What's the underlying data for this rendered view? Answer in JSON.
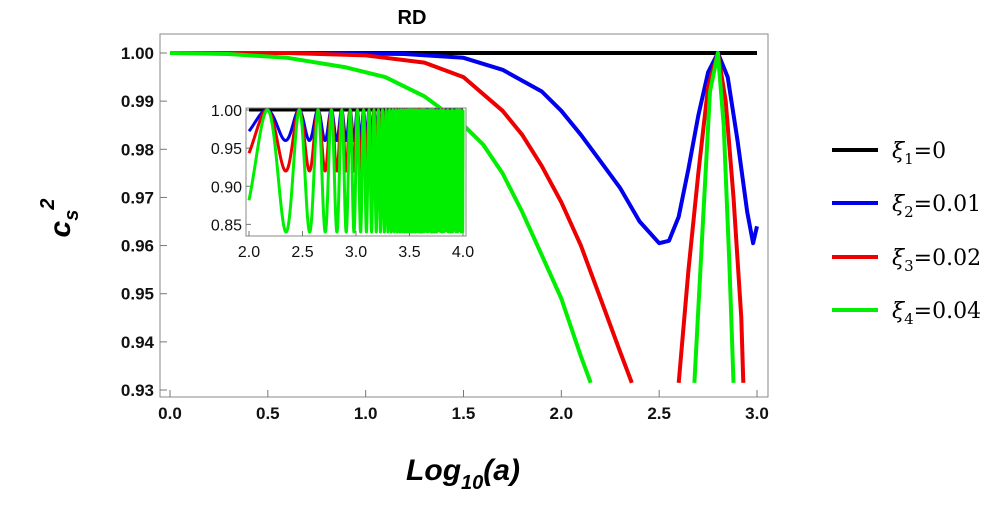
{
  "chart_data": [
    {
      "type": "line",
      "title": "RD",
      "xlabel": "Log10(a)",
      "xlabel_base": "Log",
      "xlabel_sub": "10",
      "xlabel_arg": "(a)",
      "ylabel": "cs^2",
      "ylabel_base": "c",
      "ylabel_sub": "s",
      "ylabel_sup": "2",
      "xlim": [
        0,
        3
      ],
      "ylim": [
        0.93,
        1.0
      ],
      "xticks": [
        0.0,
        0.5,
        1.0,
        1.5,
        2.0,
        2.5,
        3.0
      ],
      "xtick_labels": [
        "0.0",
        "0.5",
        "1.0",
        "1.5",
        "2.0",
        "2.5",
        "3.0"
      ],
      "yticks": [
        0.93,
        0.94,
        0.95,
        0.96,
        0.97,
        0.98,
        0.99,
        1.0
      ],
      "ytick_labels": [
        "0.93",
        "0.94",
        "0.95",
        "0.96",
        "0.97",
        "0.98",
        "0.99",
        "1.00"
      ],
      "legend_position": "right",
      "series": [
        {
          "name": "ξ1=0",
          "legend_sym": "ξ",
          "legend_sub": "1",
          "legend_val": "=0",
          "color": "#000000",
          "x": [
            0,
            3.0
          ],
          "y": [
            1.0,
            1.0
          ]
        },
        {
          "name": "ξ2=0.01",
          "legend_sym": "ξ",
          "legend_sub": "2",
          "legend_val": "=0.01",
          "color": "#0000ee",
          "x": [
            0,
            0.8,
            1.2,
            1.5,
            1.7,
            1.9,
            2.0,
            2.1,
            2.2,
            2.3,
            2.4,
            2.5,
            2.55,
            2.6,
            2.65,
            2.7,
            2.75,
            2.8,
            2.85,
            2.9,
            2.95,
            2.98,
            3.0
          ],
          "y": [
            1.0,
            1.0,
            0.9998,
            0.999,
            0.9965,
            0.992,
            0.988,
            0.983,
            0.9775,
            0.972,
            0.965,
            0.9605,
            0.961,
            0.966,
            0.976,
            0.987,
            0.996,
            1.0,
            0.995,
            0.982,
            0.967,
            0.9605,
            0.964
          ]
        },
        {
          "name": "ξ3=0.02",
          "legend_sym": "ξ",
          "legend_sub": "3",
          "legend_val": "=0.02",
          "color": "#ee0000",
          "x": [
            0,
            0.6,
            1.0,
            1.3,
            1.5,
            1.7,
            1.8,
            1.9,
            2.0,
            2.1,
            2.2,
            2.3,
            2.36,
            null,
            2.6,
            2.65,
            2.7,
            2.75,
            2.8,
            2.84,
            2.88,
            2.92,
            2.93
          ],
          "y": [
            1.0,
            1.0,
            0.9995,
            0.998,
            0.995,
            0.988,
            0.983,
            0.9765,
            0.969,
            0.96,
            0.949,
            0.938,
            0.9315,
            null,
            0.9315,
            0.955,
            0.975,
            0.993,
            1.0,
            0.99,
            0.97,
            0.945,
            0.9315
          ]
        },
        {
          "name": "ξ4=0.04",
          "legend_sym": "ξ",
          "legend_sub": "4",
          "legend_val": "=0.04",
          "color": "#00ee00",
          "x": [
            0,
            0.3,
            0.6,
            0.9,
            1.1,
            1.3,
            1.5,
            1.6,
            1.7,
            1.8,
            1.9,
            2.0,
            2.1,
            2.15,
            null,
            2.68,
            2.72,
            2.76,
            2.8,
            2.83,
            2.86,
            2.88
          ],
          "y": [
            1.0,
            0.9998,
            0.999,
            0.997,
            0.995,
            0.991,
            0.985,
            0.981,
            0.975,
            0.967,
            0.958,
            0.949,
            0.937,
            0.9315,
            null,
            0.9315,
            0.962,
            0.992,
            1.0,
            0.985,
            0.955,
            0.9315
          ]
        }
      ]
    },
    {
      "type": "line",
      "title": "inset",
      "xlim": [
        2.0,
        4.0
      ],
      "ylim": [
        0.84,
        1.0
      ],
      "xticks": [
        2.0,
        2.5,
        3.0,
        3.5,
        4.0
      ],
      "xtick_labels": [
        "2.0",
        "2.5",
        "3.0",
        "3.5",
        "4.0"
      ],
      "yticks": [
        0.85,
        0.9,
        0.95,
        1.0
      ],
      "ytick_labels": [
        "0.85",
        "0.90",
        "0.95",
        "1.00"
      ],
      "series": [
        {
          "name": "ξ1=0",
          "color": "#000000",
          "x": [
            2.0,
            4.0
          ],
          "y": [
            1.0,
            1.0
          ]
        },
        {
          "name": "ξ2=0.01",
          "color": "#0000ee",
          "amplitude": 0.04,
          "offset": 0.02
        },
        {
          "name": "ξ3=0.02",
          "color": "#ee0000",
          "amplitude": 0.08,
          "offset": 0.005
        },
        {
          "name": "ξ4=0.04",
          "color": "#00ee00",
          "amplitude": 0.16,
          "offset": -0.03
        }
      ]
    }
  ]
}
